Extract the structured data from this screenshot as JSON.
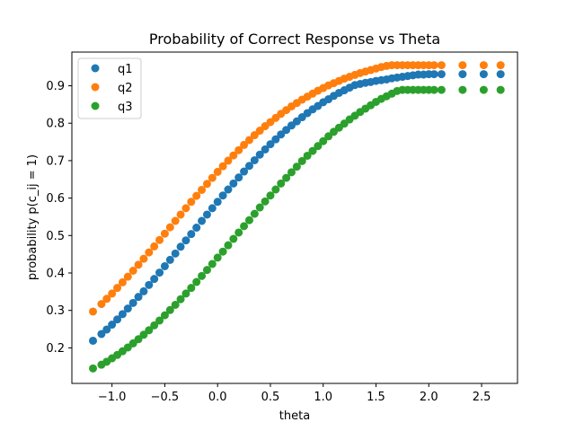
{
  "chart_data": {
    "type": "scatter",
    "title": "Probability of Correct Response vs Theta",
    "xlabel": "theta",
    "ylabel": "probability p(c_ij = 1)",
    "xlim": [
      -1.38,
      2.84
    ],
    "ylim": [
      0.105,
      0.99
    ],
    "xticks": [
      -1.0,
      -0.5,
      0.0,
      0.5,
      1.0,
      1.5,
      2.0,
      2.5
    ],
    "xtick_labels": [
      "−1.0",
      "−0.5",
      "0.0",
      "0.5",
      "1.0",
      "1.5",
      "2.0",
      "2.5"
    ],
    "yticks": [
      0.2,
      0.3,
      0.4,
      0.5,
      0.6,
      0.7,
      0.8,
      0.9
    ],
    "ytick_labels": [
      "0.2",
      "0.3",
      "0.4",
      "0.5",
      "0.6",
      "0.7",
      "0.8",
      "0.9"
    ],
    "grid": false,
    "legend_position": "top-left",
    "x": [
      -1.18,
      -1.1,
      -1.05,
      -1.0,
      -0.95,
      -0.9,
      -0.85,
      -0.8,
      -0.75,
      -0.7,
      -0.65,
      -0.6,
      -0.55,
      -0.5,
      -0.45,
      -0.4,
      -0.35,
      -0.3,
      -0.25,
      -0.2,
      -0.15,
      -0.1,
      -0.05,
      0.0,
      0.05,
      0.1,
      0.15,
      0.2,
      0.25,
      0.3,
      0.35,
      0.4,
      0.45,
      0.5,
      0.55,
      0.6,
      0.65,
      0.7,
      0.75,
      0.8,
      0.85,
      0.9,
      0.95,
      1.0,
      1.05,
      1.1,
      1.15,
      1.2,
      1.25,
      1.3,
      1.35,
      1.4,
      1.45,
      1.5,
      1.55,
      1.6,
      1.65,
      1.7,
      1.75,
      1.8,
      1.85,
      1.9,
      1.95,
      2.0,
      2.05,
      2.12,
      2.32,
      2.52,
      2.68
    ],
    "series": [
      {
        "name": "q1",
        "color": "#1f77b4",
        "values": [
          0.219,
          0.237,
          0.249,
          0.262,
          0.276,
          0.29,
          0.305,
          0.32,
          0.336,
          0.351,
          0.368,
          0.384,
          0.401,
          0.418,
          0.435,
          0.452,
          0.47,
          0.487,
          0.504,
          0.521,
          0.539,
          0.556,
          0.573,
          0.59,
          0.607,
          0.623,
          0.639,
          0.655,
          0.671,
          0.686,
          0.701,
          0.716,
          0.73,
          0.744,
          0.757,
          0.77,
          0.782,
          0.794,
          0.805,
          0.816,
          0.827,
          0.837,
          0.846,
          0.856,
          0.864,
          0.873,
          0.881,
          0.888,
          0.895,
          0.902,
          0.905,
          0.908,
          0.91,
          0.913,
          0.915,
          0.917,
          0.92,
          0.922,
          0.924,
          0.926,
          0.928,
          0.93,
          0.93,
          0.931,
          0.931,
          0.931,
          0.931,
          0.931,
          0.931
        ]
      },
      {
        "name": "q2",
        "color": "#ff7f0e",
        "values": [
          0.297,
          0.317,
          0.331,
          0.345,
          0.36,
          0.375,
          0.39,
          0.406,
          0.422,
          0.438,
          0.455,
          0.471,
          0.488,
          0.505,
          0.522,
          0.539,
          0.556,
          0.573,
          0.59,
          0.606,
          0.622,
          0.638,
          0.654,
          0.67,
          0.685,
          0.7,
          0.714,
          0.728,
          0.742,
          0.755,
          0.768,
          0.78,
          0.792,
          0.803,
          0.814,
          0.825,
          0.835,
          0.845,
          0.854,
          0.863,
          0.871,
          0.879,
          0.887,
          0.894,
          0.901,
          0.907,
          0.913,
          0.919,
          0.924,
          0.929,
          0.934,
          0.938,
          0.942,
          0.946,
          0.95,
          0.953,
          0.955,
          0.955,
          0.955,
          0.955,
          0.955,
          0.955,
          0.955,
          0.955,
          0.955,
          0.955,
          0.955,
          0.955,
          0.955
        ]
      },
      {
        "name": "q3",
        "color": "#2ca02c",
        "values": [
          0.145,
          0.155,
          0.163,
          0.172,
          0.181,
          0.191,
          0.201,
          0.212,
          0.223,
          0.235,
          0.247,
          0.26,
          0.273,
          0.287,
          0.301,
          0.315,
          0.33,
          0.345,
          0.36,
          0.376,
          0.392,
          0.408,
          0.424,
          0.441,
          0.457,
          0.474,
          0.491,
          0.508,
          0.525,
          0.541,
          0.558,
          0.575,
          0.591,
          0.607,
          0.623,
          0.639,
          0.654,
          0.669,
          0.684,
          0.699,
          0.713,
          0.726,
          0.739,
          0.752,
          0.765,
          0.777,
          0.788,
          0.799,
          0.81,
          0.82,
          0.83,
          0.839,
          0.848,
          0.857,
          0.865,
          0.872,
          0.879,
          0.886,
          0.889,
          0.889,
          0.889,
          0.889,
          0.889,
          0.889,
          0.889,
          0.889,
          0.889,
          0.889,
          0.889
        ]
      }
    ]
  }
}
